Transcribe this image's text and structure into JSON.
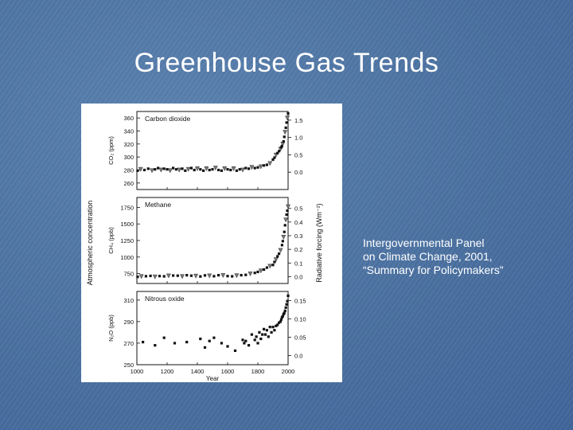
{
  "slide": {
    "title": "Greenhouse Gas Trends",
    "caption": [
      "Intergovernmental Panel",
      "on Climate Change, 2001,",
      "“Summary for Policymakers”"
    ]
  },
  "colors": {
    "background": "#4a70a0",
    "text": "#ffffff",
    "plot_ink": "#111111"
  },
  "chart_data": [
    {
      "type": "scatter",
      "title": "Carbon dioxide",
      "ylabel": "CO₂ (ppm)",
      "ylim": [
        250,
        370
      ],
      "yticks": [
        260,
        280,
        300,
        320,
        340,
        360
      ],
      "right_ticks": [
        "0.0",
        "0.5",
        "1.0",
        "1.5"
      ],
      "right_values": [
        0.0,
        0.5,
        1.0,
        1.5
      ],
      "right_lim": [
        -0.5,
        1.75
      ],
      "xlim": [
        1000,
        2000
      ],
      "x": [
        1005,
        1025,
        1050,
        1075,
        1100,
        1120,
        1140,
        1160,
        1180,
        1200,
        1220,
        1240,
        1260,
        1280,
        1300,
        1320,
        1340,
        1360,
        1380,
        1400,
        1420,
        1440,
        1460,
        1480,
        1500,
        1520,
        1540,
        1560,
        1580,
        1600,
        1620,
        1640,
        1660,
        1680,
        1700,
        1720,
        1740,
        1760,
        1780,
        1800,
        1820,
        1840,
        1860,
        1880,
        1900,
        1910,
        1920,
        1930,
        1940,
        1950,
        1955,
        1960,
        1965,
        1970,
        1975,
        1980,
        1985,
        1990,
        1995,
        2000
      ],
      "y": [
        279,
        281,
        280,
        282,
        279,
        281,
        283,
        280,
        282,
        281,
        279,
        283,
        281,
        280,
        282,
        279,
        281,
        283,
        280,
        282,
        281,
        279,
        282,
        280,
        281,
        283,
        280,
        279,
        282,
        281,
        280,
        282,
        279,
        281,
        280,
        283,
        282,
        284,
        283,
        284,
        285,
        287,
        288,
        290,
        296,
        299,
        303,
        306,
        309,
        312,
        315,
        317,
        320,
        324,
        331,
        338,
        345,
        353,
        360,
        367
      ]
    },
    {
      "type": "scatter",
      "title": "Methane",
      "ylabel": "CH₄ (ppb)",
      "ylim": [
        600,
        1900
      ],
      "yticks": [
        750,
        1000,
        1250,
        1500,
        1750
      ],
      "right_ticks": [
        "0.0",
        "0.1",
        "0.2",
        "0.3",
        "0.4",
        "0.5"
      ],
      "right_values": [
        0.0,
        0.1,
        0.2,
        0.3,
        0.4,
        0.5
      ],
      "right_lim": [
        -0.05,
        0.58
      ],
      "xlim": [
        1000,
        2000
      ],
      "x": [
        1005,
        1030,
        1060,
        1090,
        1120,
        1150,
        1180,
        1210,
        1240,
        1270,
        1300,
        1330,
        1360,
        1390,
        1420,
        1450,
        1480,
        1510,
        1540,
        1570,
        1600,
        1630,
        1660,
        1690,
        1720,
        1750,
        1780,
        1800,
        1820,
        1840,
        1860,
        1880,
        1900,
        1910,
        1920,
        1930,
        1940,
        1950,
        1960,
        1965,
        1970,
        1975,
        1980,
        1985,
        1990,
        1995,
        2000
      ],
      "y": [
        700,
        705,
        710,
        715,
        700,
        712,
        708,
        715,
        720,
        718,
        705,
        725,
        718,
        712,
        706,
        722,
        715,
        710,
        725,
        720,
        712,
        708,
        718,
        725,
        730,
        745,
        760,
        775,
        790,
        810,
        840,
        860,
        880,
        925,
        960,
        1010,
        1050,
        1100,
        1180,
        1240,
        1300,
        1380,
        1480,
        1560,
        1640,
        1700,
        1760
      ]
    },
    {
      "type": "scatter",
      "title": "Nitrous oxide",
      "ylabel": "N₂O (ppb)",
      "xlabel": "Year",
      "ylim": [
        250,
        318
      ],
      "yticks": [
        250,
        270,
        290,
        310
      ],
      "xticks": [
        1000,
        1200,
        1400,
        1600,
        1800,
        2000
      ],
      "right_ticks": [
        "0.0",
        "0.05",
        "0.10",
        "0.15"
      ],
      "right_values": [
        0.0,
        0.05,
        0.1,
        0.15
      ],
      "right_lim": [
        -0.025,
        0.175
      ],
      "xlim": [
        1000,
        2000
      ],
      "x": [
        1040,
        1120,
        1180,
        1250,
        1330,
        1420,
        1450,
        1480,
        1510,
        1560,
        1600,
        1650,
        1700,
        1710,
        1720,
        1740,
        1760,
        1780,
        1790,
        1800,
        1810,
        1820,
        1830,
        1840,
        1850,
        1860,
        1870,
        1880,
        1890,
        1900,
        1910,
        1920,
        1930,
        1940,
        1950,
        1955,
        1960,
        1965,
        1970,
        1975,
        1980,
        1985,
        1990,
        1995,
        2000
      ],
      "y": [
        271,
        268,
        275,
        270,
        271,
        274,
        266,
        272,
        275,
        270,
        267,
        263,
        273,
        270,
        272,
        268,
        278,
        273,
        276,
        270,
        280,
        274,
        278,
        283,
        278,
        282,
        276,
        285,
        280,
        285,
        282,
        286,
        287,
        289,
        290,
        292,
        294,
        295,
        297,
        298,
        300,
        303,
        306,
        309,
        314
      ]
    }
  ],
  "figure_axes": {
    "shared_x_label": "Year",
    "left_label": "Atmospheric concentration",
    "right_label": "Radiative forcing (Wm⁻²)"
  }
}
